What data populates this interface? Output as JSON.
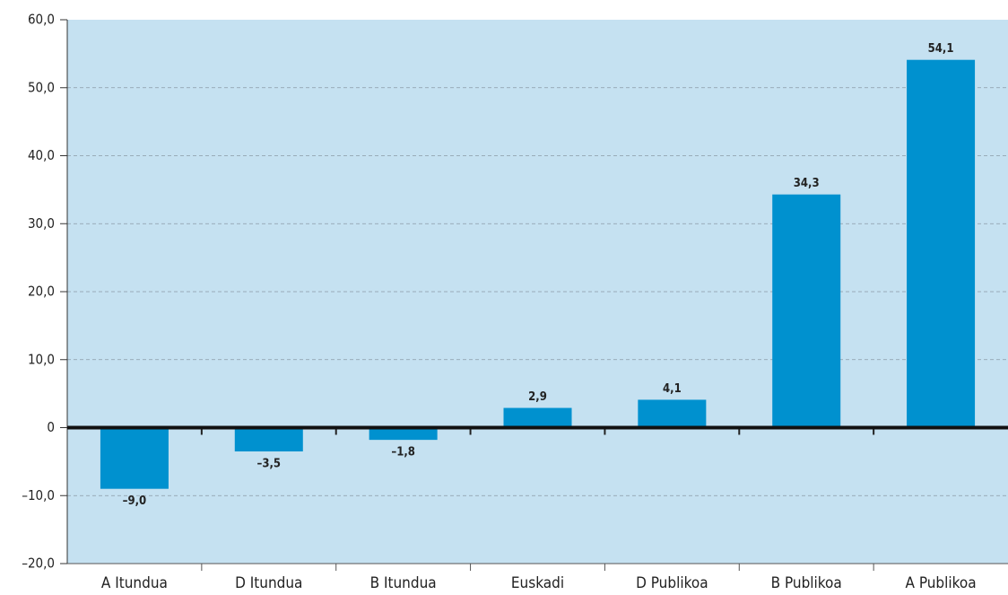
{
  "chart_data": {
    "type": "bar",
    "categories": [
      "A Itundua",
      "D Itundua",
      "B Itundua",
      "Euskadi",
      "D Publikoa",
      "B Publikoa",
      "A Publikoa"
    ],
    "values": [
      -9.0,
      -3.5,
      -1.8,
      2.9,
      4.1,
      34.3,
      54.1
    ],
    "value_labels": [
      "–9,0",
      "–3,5",
      "–1,8",
      "2,9",
      "4,1",
      "34,3",
      "54,1"
    ],
    "color": "#0091cf",
    "ylim": [
      -20,
      60
    ],
    "yticks": [
      {
        "value": -20,
        "label": "–20,0"
      },
      {
        "value": -10,
        "label": "–10,0"
      },
      0,
      {
        "value": 10,
        "label": "10,0"
      },
      {
        "value": 20,
        "label": "20,0"
      },
      {
        "value": 30,
        "label": "30,0"
      },
      {
        "value": 40,
        "label": "40,0"
      },
      {
        "value": 50,
        "label": "50,0"
      },
      {
        "value": 60,
        "label": "60,0"
      }
    ],
    "grid": true
  }
}
